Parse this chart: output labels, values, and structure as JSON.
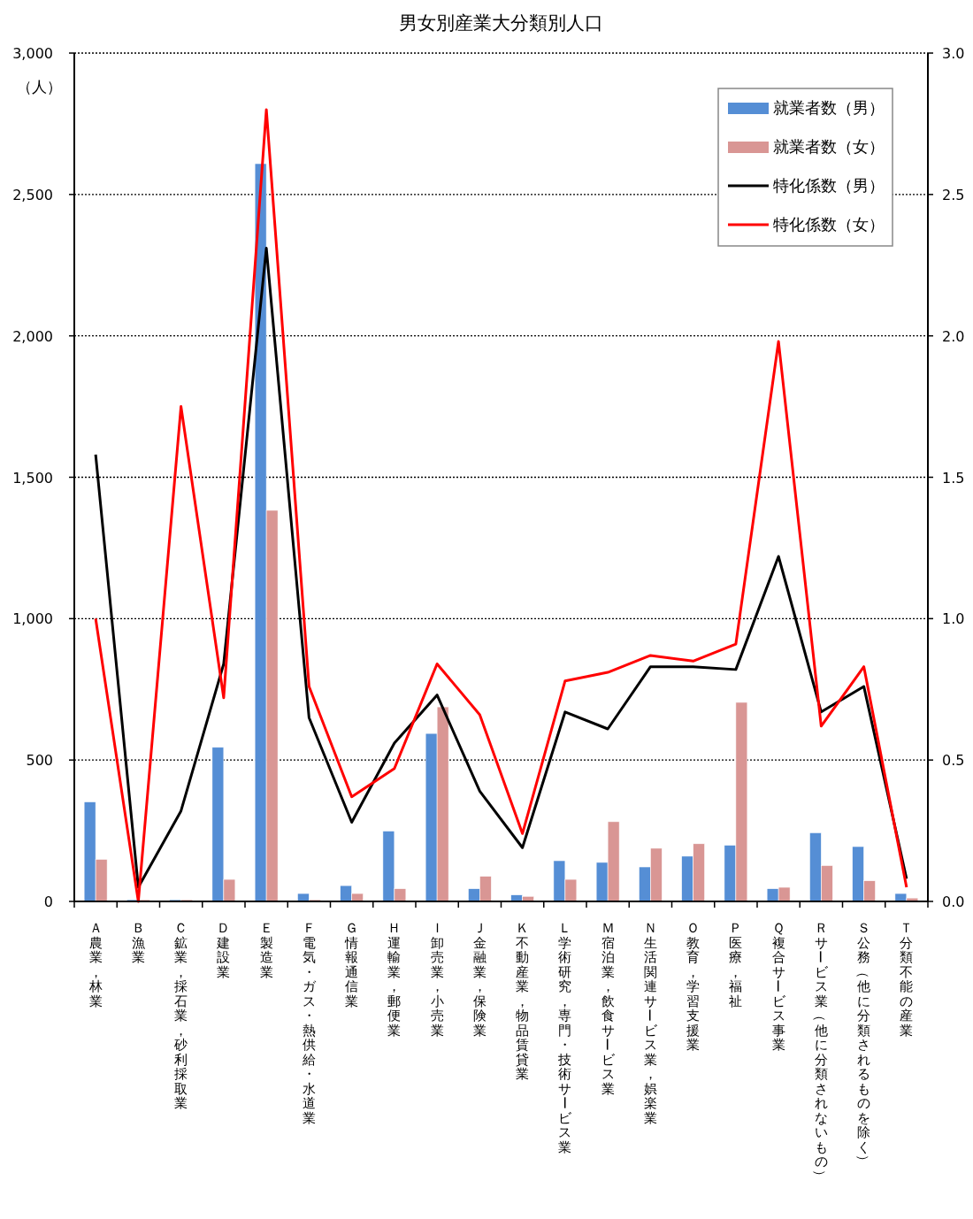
{
  "chart_data": {
    "type": "bar",
    "title": "男女別産業大分類別人口",
    "ylabel": "（人）",
    "categories": [
      "Ａ農業，林業",
      "Ｂ漁業",
      "Ｃ鉱業，採石業，砂利採取業",
      "Ｄ建設業",
      "Ｅ製造業",
      "Ｆ電気・ガス・熱供給・水道業",
      "Ｇ情報通信業",
      "Ｈ運輸業，郵便業",
      "Ｉ卸売業，小売業",
      "Ｊ金融業，保険業",
      "Ｋ不動産業，物品賃貸業",
      "Ｌ学術研究，専門・技術サービス業",
      "Ｍ宿泊業，飲食サービス業",
      "Ｎ生活関連サービス業，娯楽業",
      "Ｏ教育，学習支援業",
      "Ｐ医療，福祉",
      "Ｑ複合サービス事業",
      "Ｒサービス業（他に分類されないもの）",
      "Ｓ公務（他に分類されるものを除く）",
      "Ｔ分類不能の産業"
    ],
    "series": [
      {
        "name": "就業者数（男）",
        "color": "#558ed5",
        "values": [
          352,
          6,
          6,
          545,
          2609,
          28,
          56,
          249,
          594,
          45,
          23,
          144,
          138,
          122,
          160,
          199,
          45,
          243,
          194,
          28
        ]
      },
      {
        "name": "就業者数（女）",
        "color": "#d99694",
        "values": [
          149,
          6,
          6,
          78,
          1383,
          6,
          28,
          45,
          688,
          89,
          18,
          78,
          282,
          188,
          204,
          704,
          50,
          127,
          73,
          12
        ]
      },
      {
        "name": "特化係数（男）",
        "type": "line",
        "axis": "y2",
        "color": "#000000",
        "values": [
          1.58,
          0.05,
          0.32,
          0.84,
          2.31,
          0.65,
          0.28,
          0.56,
          0.73,
          0.39,
          0.19,
          0.67,
          0.61,
          0.83,
          0.83,
          0.82,
          1.22,
          0.67,
          0.76,
          0.08
        ]
      },
      {
        "name": "特化係数（女）",
        "type": "line",
        "axis": "y2",
        "color": "#ff0000",
        "values": [
          1.0,
          0.0,
          1.75,
          0.72,
          2.8,
          0.76,
          0.37,
          0.47,
          0.84,
          0.66,
          0.24,
          0.78,
          0.81,
          0.87,
          0.85,
          0.91,
          1.98,
          0.62,
          0.83,
          0.05
        ]
      }
    ],
    "ylim": [
      0,
      3000
    ],
    "yticks": [
      {
        "value": 0,
        "label": "0"
      },
      {
        "value": 500,
        "label": "500"
      },
      {
        "value": 1000,
        "label": "1,000"
      },
      {
        "value": 1500,
        "label": "1,500"
      },
      {
        "value": 2000,
        "label": "2,000"
      },
      {
        "value": 2500,
        "label": "2,500"
      },
      {
        "value": 3000,
        "label": "3,000"
      }
    ],
    "y2lim": [
      0,
      3
    ],
    "y2ticks": [
      {
        "value": 0,
        "label": "0.0"
      },
      {
        "value": 0.5,
        "label": "0.5"
      },
      {
        "value": 1,
        "label": "1.0"
      },
      {
        "value": 1.5,
        "label": "1.5"
      },
      {
        "value": 2,
        "label": "2.0"
      },
      {
        "value": 2.5,
        "label": "2.5"
      },
      {
        "value": 3,
        "label": "3.0"
      }
    ],
    "grid": "y",
    "legend": "top right"
  }
}
